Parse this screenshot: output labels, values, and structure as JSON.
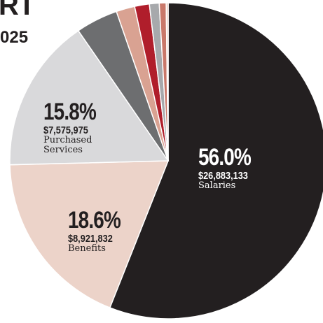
{
  "chart_data": {
    "type": "pie",
    "title": "RT",
    "subtitle": "025",
    "categories": [
      "Salaries",
      "Benefits",
      "Purchased Services",
      null,
      null,
      null,
      null,
      null,
      null
    ],
    "values": [
      56.0,
      18.6,
      15.8,
      4.3,
      1.9,
      1.5,
      1.0,
      0.7,
      0.2
    ],
    "value_labels": [
      "56.0%",
      "18.6%",
      "15.8%",
      null,
      null,
      null,
      null,
      null,
      null
    ],
    "amounts": [
      26883133,
      8921832,
      7575975,
      null,
      null,
      null,
      null,
      null,
      null
    ],
    "amount_labels": [
      "$26,883,133",
      "$8,921,832",
      "$7,575,975",
      null,
      null,
      null,
      null,
      null,
      null
    ],
    "colors": [
      "#231f20",
      "#ecd3c9",
      "#d9d9db",
      "#6d6e70",
      "#d9a292",
      "#b01e2b",
      "#a7a9ac",
      "#c9786a",
      "#e8c0b0"
    ]
  }
}
